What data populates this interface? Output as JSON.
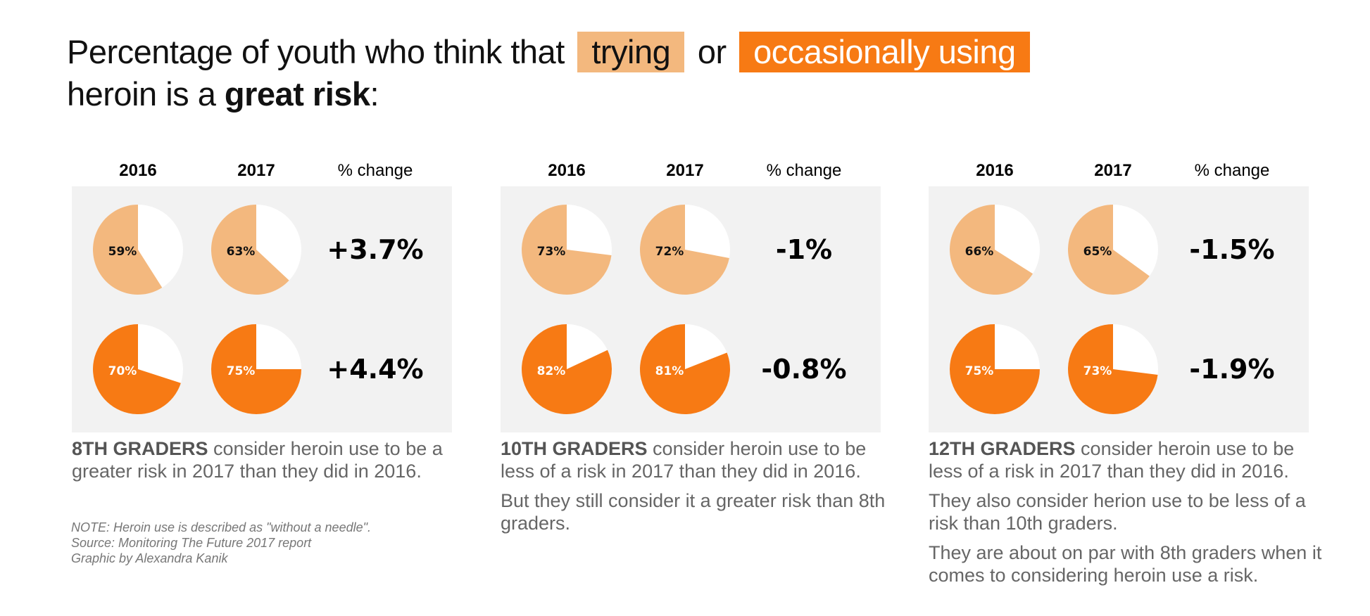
{
  "title": {
    "part1": "Percentage of youth who think that",
    "chip_trying": "trying",
    "or": "or",
    "chip_occasional": "occasionally using",
    "part2": "heroin is a",
    "bold": "great risk",
    "colon": ":"
  },
  "colors": {
    "trying": "#f3b87e",
    "occasionally_using": "#f77a14",
    "remainder": "#ffffff",
    "panel_bg": "#f2f2f2"
  },
  "headers": {
    "year1": "2016",
    "year2": "2017",
    "change": "% change"
  },
  "chart_data": [
    {
      "type": "pie",
      "group": "8TH GRADERS",
      "rows": [
        {
          "series": "trying",
          "values": {
            "2016": 59,
            "2017": 63
          },
          "labels": [
            "59%",
            "63%"
          ],
          "change": "+3.7%"
        },
        {
          "series": "occasionally using",
          "values": {
            "2016": 70,
            "2017": 75
          },
          "labels": [
            "70%",
            "75%"
          ],
          "change": "+4.4%"
        }
      ]
    },
    {
      "type": "pie",
      "group": "10TH GRADERS",
      "rows": [
        {
          "series": "trying",
          "values": {
            "2016": 73,
            "2017": 72
          },
          "labels": [
            "73%",
            "72%"
          ],
          "change": "-1%"
        },
        {
          "series": "occasionally using",
          "values": {
            "2016": 82,
            "2017": 81
          },
          "labels": [
            "82%",
            "81%"
          ],
          "change": "-0.8%"
        }
      ]
    },
    {
      "type": "pie",
      "group": "12TH GRADERS",
      "rows": [
        {
          "series": "trying",
          "values": {
            "2016": 66,
            "2017": 65
          },
          "labels": [
            "66%",
            "65%"
          ],
          "change": "-1.5%"
        },
        {
          "series": "occasionally using",
          "values": {
            "2016": 75,
            "2017": 73
          },
          "labels": [
            "75%",
            "73%"
          ],
          "change": "-1.9%"
        }
      ]
    }
  ],
  "descriptions": [
    {
      "bold": "8TH GRADERS",
      "rest": " consider heroin use to be a greater risk in 2017 than they did in 2016.",
      "extra": []
    },
    {
      "bold": "10TH GRADERS",
      "rest": " consider heroin use to be less of a risk in 2017 than they did in 2016.",
      "extra": [
        "But they still consider it a greater risk than 8th graders."
      ]
    },
    {
      "bold": "12TH GRADERS",
      "rest": " consider heroin use to be less of a risk in 2017 than they did in 2016.",
      "extra": [
        "They also consider herion use to be less of a risk than 10th graders.",
        "They are about on par with 8th graders when it comes to considering heroin use a risk."
      ]
    }
  ],
  "note": {
    "line1": "NOTE: Heroin use is described as \"without a needle\".",
    "line2": "Source: Monitoring The Future 2017 report",
    "line3": "Graphic by Alexandra Kanik"
  }
}
